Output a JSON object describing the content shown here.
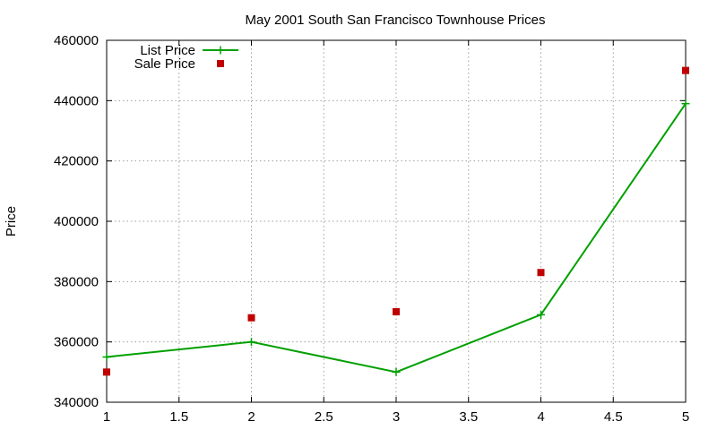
{
  "chart_data": {
    "type": "line",
    "title": "May 2001 South San Francisco Townhouse Prices",
    "xlabel": "",
    "ylabel": "Price",
    "xlim": [
      1,
      5
    ],
    "ylim": [
      340000,
      460000
    ],
    "x_ticks": [
      "1",
      "1.5",
      "2",
      "2.5",
      "3",
      "3.5",
      "4",
      "4.5",
      "5"
    ],
    "y_ticks": [
      "340000",
      "360000",
      "380000",
      "400000",
      "420000",
      "440000",
      "460000"
    ],
    "grid": true,
    "legend_position": "top-left",
    "x": [
      1,
      2,
      3,
      4,
      5
    ],
    "series": [
      {
        "name": "List Price",
        "style": "linespoints",
        "marker": "plus",
        "color": "#00a000",
        "values": [
          355000,
          360000,
          350000,
          369000,
          439000
        ]
      },
      {
        "name": "Sale Price",
        "style": "points",
        "marker": "square",
        "color": "#c00000",
        "values": [
          350000,
          368000,
          370000,
          383000,
          450000
        ]
      }
    ]
  }
}
